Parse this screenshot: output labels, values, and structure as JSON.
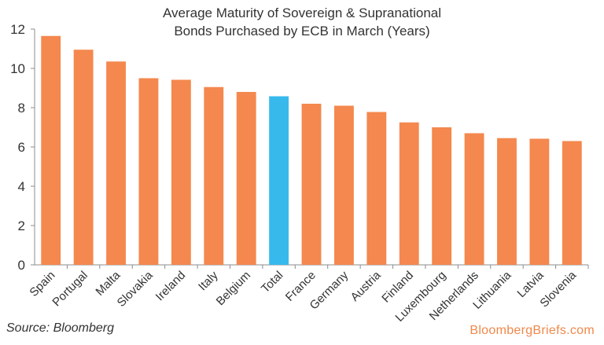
{
  "chart_data": {
    "type": "bar",
    "title": "Average Maturity of Sovereign & Supranational",
    "subtitle": "Bonds Purchased by ECB in March (Years)",
    "categories": [
      "Spain",
      "Portugal",
      "Malta",
      "Slovakia",
      "Ireland",
      "Italy",
      "Belgium",
      "Total",
      "France",
      "Germany",
      "Austria",
      "Finland",
      "Luxembourg",
      "Netherlands",
      "Lithuania",
      "Latvia",
      "Slovenia"
    ],
    "values": [
      11.65,
      10.95,
      10.35,
      9.5,
      9.42,
      9.05,
      8.8,
      8.58,
      8.2,
      8.1,
      7.78,
      7.25,
      7.0,
      6.7,
      6.45,
      6.42,
      6.3
    ],
    "highlight": "Total",
    "bar_color": "#f4884e",
    "highlight_color": "#37b9ec",
    "ylim": [
      0,
      12
    ],
    "yticks": [
      0,
      2,
      4,
      6,
      8,
      10,
      12
    ],
    "xlabel": "",
    "ylabel": "",
    "grid": false
  },
  "source": "Source: Bloomberg",
  "brand": "BloombergBriefs.com"
}
